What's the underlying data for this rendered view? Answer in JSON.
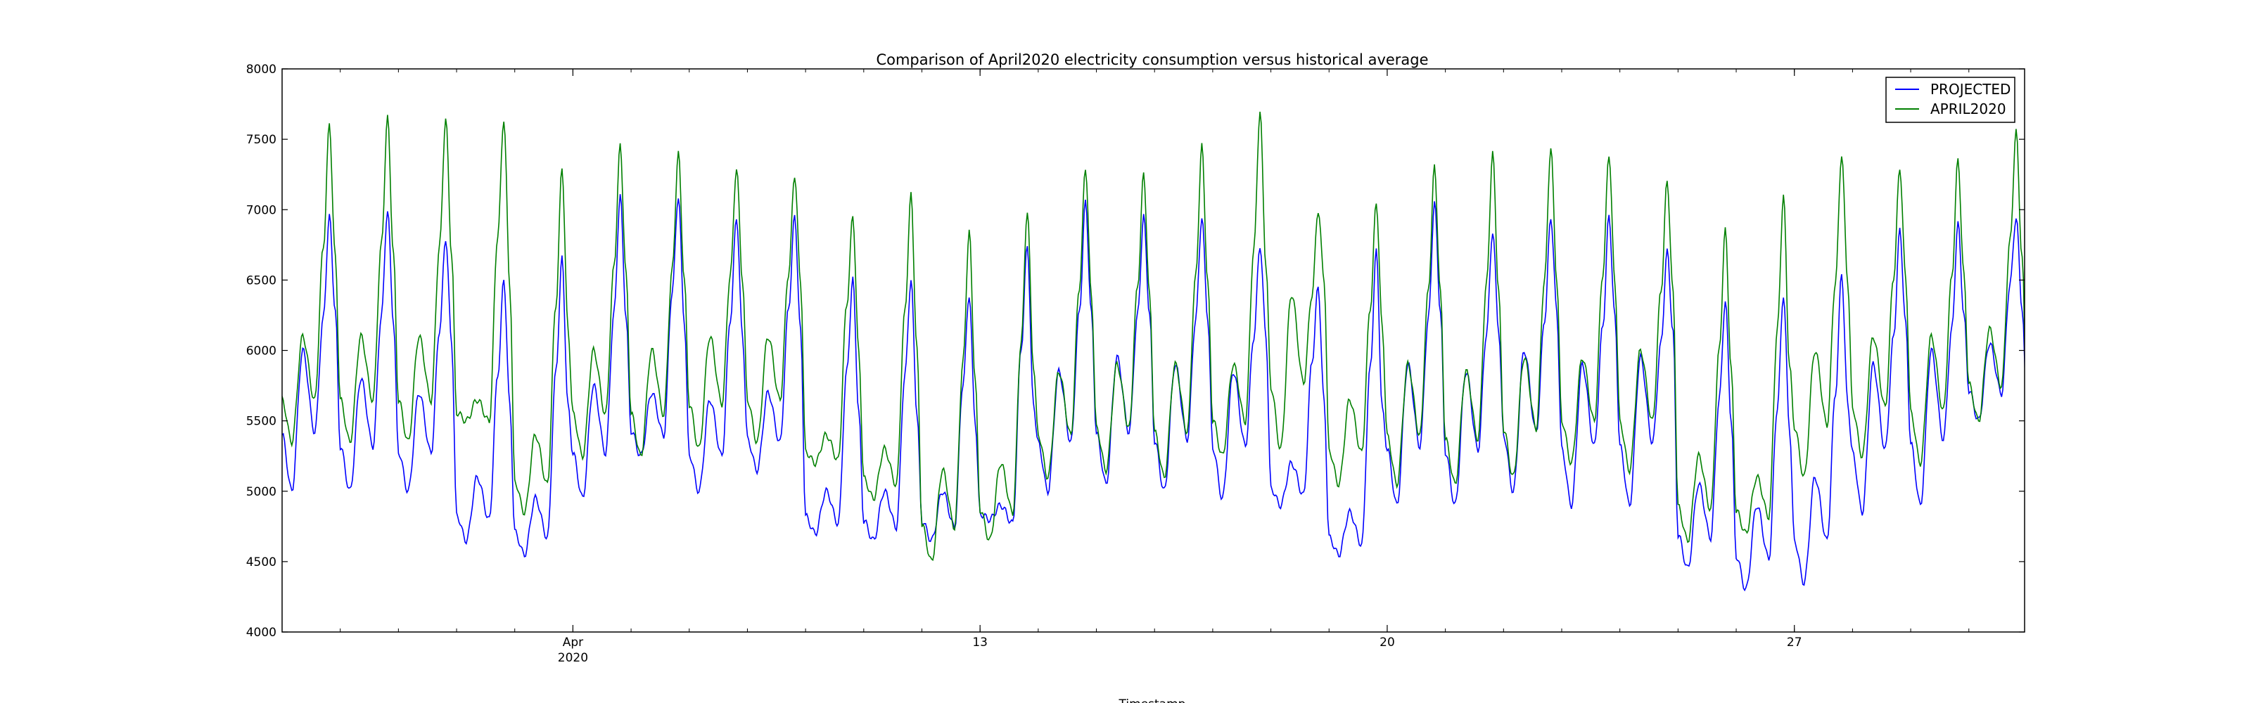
{
  "chart_data": {
    "type": "line",
    "title": "Comparison of April2020 electricity consumption versus historical average",
    "xlabel": "Timestamp",
    "ylabel": "",
    "x_range": [
      "2020-04-01",
      "2020-04-30"
    ],
    "ylim": [
      4000,
      8000
    ],
    "yticks": [
      4000,
      4500,
      5000,
      5500,
      6000,
      6500,
      7000,
      7500,
      8000
    ],
    "xticks": [
      {
        "date": "2020-04-06",
        "label": "Apr",
        "sublabel": "2020"
      },
      {
        "date": "2020-04-13",
        "label": "13",
        "sublabel": ""
      },
      {
        "date": "2020-04-20",
        "label": "20",
        "sublabel": ""
      },
      {
        "date": "2020-04-27",
        "label": "27",
        "sublabel": ""
      }
    ],
    "grid": false,
    "legend_position": "top-right",
    "series": [
      {
        "name": "PROJECTED",
        "color": "#0000ff",
        "daily": [
          {
            "date": "2020-04-01",
            "min": 5000,
            "morning": 6000,
            "peak": 6950
          },
          {
            "date": "2020-04-02",
            "min": 5000,
            "morning": 5800,
            "peak": 7000
          },
          {
            "date": "2020-04-03",
            "min": 5000,
            "morning": 5700,
            "peak": 6800
          },
          {
            "date": "2020-04-04",
            "min": 4650,
            "morning": 5100,
            "peak": 6500
          },
          {
            "date": "2020-04-05",
            "min": 4550,
            "morning": 4950,
            "peak": 6650
          },
          {
            "date": "2020-04-06",
            "min": 4950,
            "morning": 5750,
            "peak": 7100
          },
          {
            "date": "2020-04-07",
            "min": 5250,
            "morning": 5700,
            "peak": 7100
          },
          {
            "date": "2020-04-08",
            "min": 5000,
            "morning": 5650,
            "peak": 6950
          },
          {
            "date": "2020-04-09",
            "min": 5150,
            "morning": 5700,
            "peak": 6950
          },
          {
            "date": "2020-04-10",
            "min": 4700,
            "morning": 5000,
            "peak": 6500
          },
          {
            "date": "2020-04-11",
            "min": 4650,
            "morning": 5000,
            "peak": 6500
          },
          {
            "date": "2020-04-12",
            "min": 4650,
            "morning": 5000,
            "peak": 6400
          },
          {
            "date": "2020-04-13",
            "min": 4800,
            "morning": 4900,
            "peak": 6750
          },
          {
            "date": "2020-04-14",
            "min": 5000,
            "morning": 5850,
            "peak": 7050
          },
          {
            "date": "2020-04-15",
            "min": 5050,
            "morning": 5950,
            "peak": 6950
          },
          {
            "date": "2020-04-16",
            "min": 5000,
            "morning": 5900,
            "peak": 6950
          },
          {
            "date": "2020-04-17",
            "min": 4950,
            "morning": 5850,
            "peak": 6750
          },
          {
            "date": "2020-04-18",
            "min": 4900,
            "morning": 5200,
            "peak": 6450
          },
          {
            "date": "2020-04-19",
            "min": 4550,
            "morning": 4850,
            "peak": 6700
          },
          {
            "date": "2020-04-20",
            "min": 4900,
            "morning": 5900,
            "peak": 7050
          },
          {
            "date": "2020-04-21",
            "min": 4900,
            "morning": 5850,
            "peak": 6850
          },
          {
            "date": "2020-04-22",
            "min": 5000,
            "morning": 6000,
            "peak": 6950
          },
          {
            "date": "2020-04-23",
            "min": 4900,
            "morning": 5900,
            "peak": 6950
          },
          {
            "date": "2020-04-24",
            "min": 4900,
            "morning": 5950,
            "peak": 6700
          },
          {
            "date": "2020-04-25",
            "min": 4450,
            "morning": 5050,
            "peak": 6350
          },
          {
            "date": "2020-04-26",
            "min": 4300,
            "morning": 4900,
            "peak": 6400
          },
          {
            "date": "2020-04-27",
            "min": 4350,
            "morning": 5100,
            "peak": 6550
          },
          {
            "date": "2020-04-28",
            "min": 4850,
            "morning": 5900,
            "peak": 6850
          },
          {
            "date": "2020-04-29",
            "min": 4900,
            "morning": 6000,
            "peak": 6900
          },
          {
            "date": "2020-04-30",
            "min": 5500,
            "morning": 6050,
            "peak": 6950
          }
        ]
      },
      {
        "name": "APRIL2020",
        "color": "#008000",
        "daily": [
          {
            "date": "2020-04-01",
            "min": 5350,
            "morning": 6100,
            "peak": 7600
          },
          {
            "date": "2020-04-02",
            "min": 5350,
            "morning": 6100,
            "peak": 7650
          },
          {
            "date": "2020-04-03",
            "min": 5350,
            "morning": 6100,
            "peak": 7650
          },
          {
            "date": "2020-04-04",
            "min": 5500,
            "morning": 5650,
            "peak": 7650
          },
          {
            "date": "2020-04-05",
            "min": 4850,
            "morning": 5400,
            "peak": 7300
          },
          {
            "date": "2020-04-06",
            "min": 5250,
            "morning": 6000,
            "peak": 7450
          },
          {
            "date": "2020-04-07",
            "min": 5250,
            "morning": 6000,
            "peak": 7400
          },
          {
            "date": "2020-04-08",
            "min": 5300,
            "morning": 6100,
            "peak": 7300
          },
          {
            "date": "2020-04-09",
            "min": 5350,
            "morning": 6100,
            "peak": 7250
          },
          {
            "date": "2020-04-10",
            "min": 5200,
            "morning": 5400,
            "peak": 6950
          },
          {
            "date": "2020-04-11",
            "min": 4950,
            "morning": 5300,
            "peak": 7100
          },
          {
            "date": "2020-04-12",
            "min": 4500,
            "morning": 5150,
            "peak": 6850
          },
          {
            "date": "2020-04-13",
            "min": 4650,
            "morning": 5200,
            "peak": 7000
          },
          {
            "date": "2020-04-14",
            "min": 5100,
            "morning": 5850,
            "peak": 7300
          },
          {
            "date": "2020-04-15",
            "min": 5150,
            "morning": 5900,
            "peak": 7250
          },
          {
            "date": "2020-04-16",
            "min": 5100,
            "morning": 5900,
            "peak": 7450
          },
          {
            "date": "2020-04-17",
            "min": 5250,
            "morning": 5900,
            "peak": 7700
          },
          {
            "date": "2020-04-18",
            "min": 5300,
            "morning": 6400,
            "peak": 7000
          },
          {
            "date": "2020-04-19",
            "min": 5050,
            "morning": 5650,
            "peak": 7050
          },
          {
            "date": "2020-04-20",
            "min": 5050,
            "morning": 5900,
            "peak": 7300
          },
          {
            "date": "2020-04-21",
            "min": 5050,
            "morning": 5850,
            "peak": 7400
          },
          {
            "date": "2020-04-22",
            "min": 5100,
            "morning": 5950,
            "peak": 7450
          },
          {
            "date": "2020-04-23",
            "min": 5200,
            "morning": 5950,
            "peak": 7400
          },
          {
            "date": "2020-04-24",
            "min": 5150,
            "morning": 6000,
            "peak": 7200
          },
          {
            "date": "2020-04-25",
            "min": 4650,
            "morning": 5250,
            "peak": 6850
          },
          {
            "date": "2020-04-26",
            "min": 4700,
            "morning": 5100,
            "peak": 7100
          },
          {
            "date": "2020-04-27",
            "min": 5100,
            "morning": 6000,
            "peak": 7400
          },
          {
            "date": "2020-04-28",
            "min": 5250,
            "morning": 6100,
            "peak": 7300
          },
          {
            "date": "2020-04-29",
            "min": 5200,
            "morning": 6100,
            "peak": 7350
          },
          {
            "date": "2020-04-30",
            "min": 5500,
            "morning": 6150,
            "peak": 7550
          }
        ]
      }
    ]
  }
}
